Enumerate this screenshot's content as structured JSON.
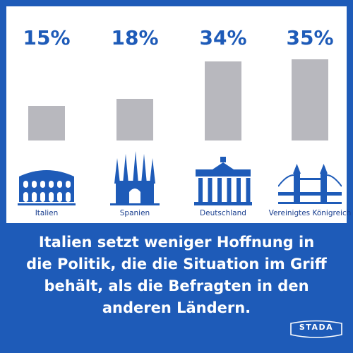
{
  "chart_data": {
    "type": "bar",
    "categories": [
      "Italien",
      "Spanien",
      "Deutschland",
      "Vereinigtes Königreich"
    ],
    "values": [
      15,
      18,
      34,
      35
    ],
    "value_labels": [
      "15%",
      "18%",
      "34%",
      "35%"
    ],
    "unit": "%",
    "title": "",
    "xlabel": "",
    "ylabel": "",
    "bar_color": "#b8b8be",
    "label_color": "#1e5bb8",
    "icons": [
      "colosseum-icon",
      "sagrada-familia-icon",
      "brandenburg-gate-icon",
      "tower-bridge-icon"
    ]
  },
  "caption": "Italien setzt weniger Hoffnung in die Politik, die die Situation im Griff behält, als die Befragten in den anderen Ländern.",
  "brand": {
    "name": "STADA",
    "color": "#1e5bb8"
  }
}
